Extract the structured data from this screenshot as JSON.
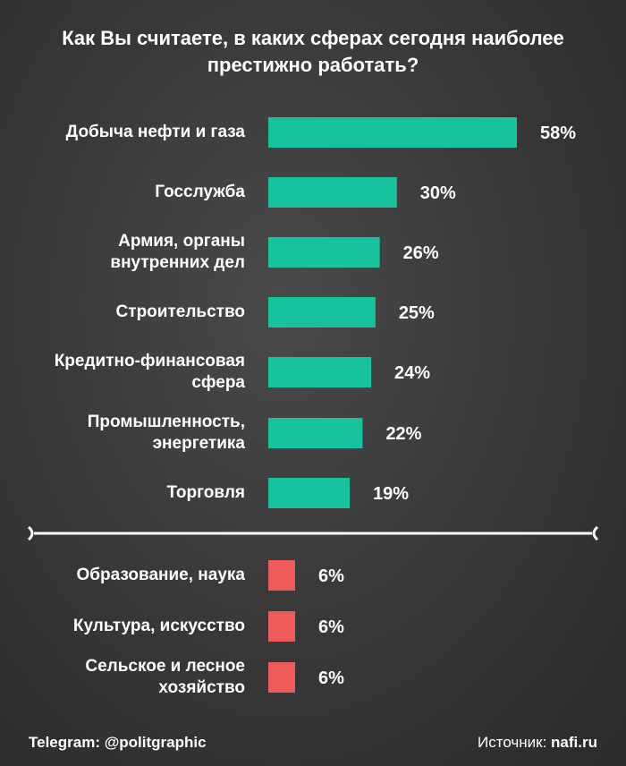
{
  "title_line1": "Как Вы считаете, в каких сферах сегодня наиболее",
  "title_line2": "престижно работать?",
  "colors": {
    "top_group": "#17c29c",
    "bottom_group": "#ef5b5b",
    "text": "#ffffff"
  },
  "chart_data": {
    "type": "bar",
    "orientation": "horizontal",
    "title": "Как Вы считаете, в каких сферах сегодня наиболее престижно работать?",
    "unit": "%",
    "groups": [
      {
        "name": "top",
        "color": "#17c29c",
        "items": [
          {
            "label_lines": [
              "Добыча нефти и газа"
            ],
            "value": 58,
            "display": "58%"
          },
          {
            "label_lines": [
              "Госслужба"
            ],
            "value": 30,
            "display": "30%"
          },
          {
            "label_lines": [
              "Армия, органы",
              "внутренних дел"
            ],
            "value": 26,
            "display": "26%"
          },
          {
            "label_lines": [
              "Строительство"
            ],
            "value": 25,
            "display": "25%"
          },
          {
            "label_lines": [
              "Кредитно-финансовая",
              "сфера"
            ],
            "value": 24,
            "display": "24%"
          },
          {
            "label_lines": [
              "Промышленность,",
              "энергетика"
            ],
            "value": 22,
            "display": "22%"
          },
          {
            "label_lines": [
              "Торговля"
            ],
            "value": 19,
            "display": "19%"
          }
        ]
      },
      {
        "name": "bottom",
        "color": "#ef5b5b",
        "items": [
          {
            "label_lines": [
              "Образование, наука"
            ],
            "value": 6,
            "display": "6%"
          },
          {
            "label_lines": [
              "Культура, искусство"
            ],
            "value": 6,
            "display": "6%"
          },
          {
            "label_lines": [
              "Сельское и лесное",
              "хозяйство"
            ],
            "value": 6,
            "display": "6%"
          }
        ]
      }
    ]
  },
  "footer": {
    "telegram": "Telegram: @politgraphic",
    "source_prefix": "Источник: ",
    "source_name": "nafi.ru"
  }
}
